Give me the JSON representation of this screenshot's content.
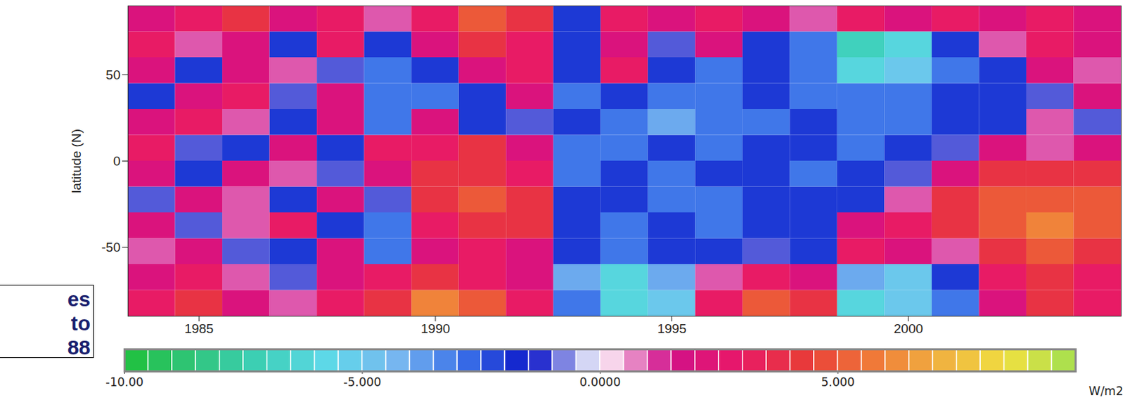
{
  "chart_data": {
    "type": "heatmap",
    "y_label": "latitude (N)",
    "xlim": [
      1983.5,
      2004.5
    ],
    "xticks": [
      1985,
      1990,
      1995,
      2000
    ],
    "ylim": [
      -90,
      90
    ],
    "yticks": [
      -50,
      0,
      50
    ],
    "x_bins": [
      1983.5,
      1984.5,
      1985.5,
      1986.5,
      1987.5,
      1988.5,
      1989.5,
      1990.5,
      1991.5,
      1992.5,
      1993.5,
      1994.5,
      1995.5,
      1996.5,
      1997.5,
      1998.5,
      1999.5,
      2000.5,
      2001.5,
      2002.5,
      2003.5,
      2004.5
    ],
    "y_bins": [
      -90,
      -75,
      -60,
      -45,
      -30,
      -15,
      0,
      15,
      30,
      45,
      60,
      75,
      90
    ],
    "values": [
      [
        3,
        4,
        2,
        1,
        3,
        4,
        6,
        5,
        3,
        -3,
        -6,
        -5,
        3,
        5,
        4,
        -6,
        -5,
        -3,
        2,
        4,
        3
      ],
      [
        2,
        3,
        1,
        -1,
        2,
        3,
        4,
        3,
        2,
        -4,
        -6,
        -4,
        1,
        3,
        2,
        -4,
        -5,
        -2,
        3,
        4,
        3
      ],
      [
        1,
        2,
        -1,
        -2,
        2,
        -3,
        2,
        3,
        2,
        -2,
        -3,
        -2,
        -2,
        -1,
        -2,
        3,
        2,
        1,
        4,
        5,
        4
      ],
      [
        2,
        -1,
        1,
        3,
        -2,
        -3,
        3,
        4,
        4,
        -2,
        -3,
        -2,
        -3,
        -2,
        -2,
        2,
        3,
        4,
        5,
        6,
        5
      ],
      [
        -1,
        2,
        1,
        -2,
        2,
        -1,
        4,
        5,
        4,
        -2,
        -2,
        -3,
        -3,
        -2,
        -2,
        -2,
        1,
        4,
        5,
        5,
        5
      ],
      [
        2,
        -2,
        2,
        1,
        -1,
        2,
        4,
        4,
        3,
        -3,
        -2,
        -3,
        -2,
        -2,
        -3,
        -2,
        -1,
        2,
        4,
        4,
        4
      ],
      [
        3,
        -1,
        -2,
        2,
        -2,
        3,
        3,
        4,
        2,
        -3,
        -3,
        -2,
        -3,
        -2,
        -2,
        -3,
        -2,
        -1,
        2,
        1,
        2
      ],
      [
        2,
        3,
        1,
        -2,
        2,
        -3,
        2,
        -2,
        -1,
        -2,
        -3,
        -4,
        -3,
        -3,
        -2,
        -3,
        -3,
        -2,
        -2,
        1,
        -1
      ],
      [
        -2,
        2,
        3,
        -1,
        2,
        -3,
        -3,
        -2,
        2,
        -3,
        -2,
        -3,
        -3,
        -2,
        -3,
        -3,
        -3,
        -2,
        -2,
        -1,
        2
      ],
      [
        2,
        -2,
        2,
        1,
        -1,
        -3,
        -2,
        2,
        3,
        -2,
        3,
        -2,
        -3,
        -2,
        -3,
        -6,
        -5,
        -3,
        -2,
        2,
        1
      ],
      [
        3,
        1,
        2,
        -2,
        3,
        -2,
        2,
        4,
        3,
        -2,
        2,
        -1,
        2,
        -2,
        -3,
        -7,
        -6,
        -2,
        1,
        3,
        2
      ],
      [
        2,
        3,
        4,
        2,
        3,
        1,
        3,
        5,
        4,
        -2,
        3,
        2,
        3,
        2,
        1,
        3,
        2,
        3,
        2,
        3,
        2
      ]
    ],
    "colorbar": {
      "range": [
        -10,
        10
      ],
      "ticks": [
        {
          "value": -10,
          "label": "-10.00"
        },
        {
          "value": -5,
          "label": "-5.000"
        },
        {
          "value": 0,
          "label": "0.0000"
        },
        {
          "value": 5,
          "label": "5.000"
        }
      ],
      "label": "W/m2",
      "colors": [
        "#1fc03a",
        "#30c47a",
        "#3dd0b8",
        "#5ed8e8",
        "#78b8f0",
        "#3a70e8",
        "#0a14c8",
        "#ffffff",
        "#d0108a",
        "#e8186a",
        "#e83a3a",
        "#f07838",
        "#f0b040",
        "#f0e040",
        "#a0e050"
      ]
    },
    "annotation": {
      "lines": [
        "es",
        "to",
        "88"
      ]
    }
  }
}
